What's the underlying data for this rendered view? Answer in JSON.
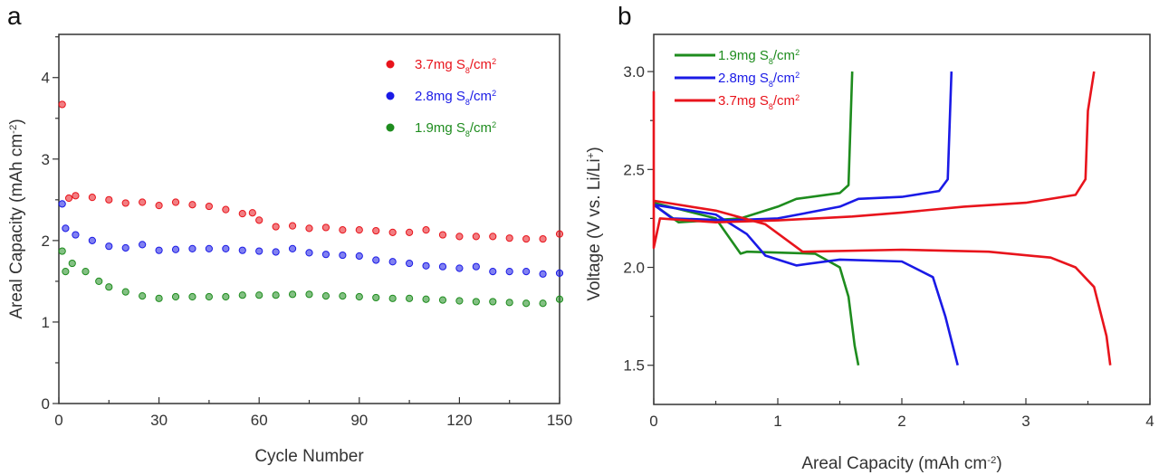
{
  "chart_data": [
    {
      "panel_label": "a",
      "type": "scatter",
      "xlabel": "Cycle Number",
      "ylabel": {
        "text": "Areal Capacity (mAh cm",
        "sup": "-2",
        "tail": ")"
      },
      "xlim": [
        0,
        150
      ],
      "ylim": [
        0,
        4.53
      ],
      "xticks": [
        0,
        30,
        60,
        90,
        120,
        150
      ],
      "yticks": [
        0,
        1,
        2,
        3,
        4
      ],
      "grid": false,
      "legend_position": "top-right",
      "series": [
        {
          "name": {
            "prefix": "3.7mg S",
            "sub": "8",
            "mid": "/cm",
            "sup": "2"
          },
          "color": "#e8141c",
          "x": [
            1,
            3,
            5,
            10,
            15,
            20,
            25,
            30,
            35,
            40,
            45,
            50,
            55,
            58,
            60,
            65,
            70,
            75,
            80,
            85,
            90,
            95,
            100,
            105,
            110,
            115,
            120,
            125,
            130,
            135,
            140,
            145,
            150
          ],
          "y": [
            3.67,
            2.52,
            2.55,
            2.53,
            2.5,
            2.46,
            2.47,
            2.43,
            2.47,
            2.44,
            2.42,
            2.38,
            2.33,
            2.34,
            2.25,
            2.17,
            2.18,
            2.15,
            2.16,
            2.13,
            2.13,
            2.12,
            2.1,
            2.1,
            2.13,
            2.07,
            2.05,
            2.05,
            2.05,
            2.03,
            2.02,
            2.02,
            2.08
          ]
        },
        {
          "name": {
            "prefix": "2.8mg S",
            "sub": "8",
            "mid": "/cm",
            "sup": "2"
          },
          "color": "#1a1ae6",
          "x": [
            1,
            2,
            5,
            10,
            15,
            20,
            25,
            30,
            35,
            40,
            45,
            50,
            55,
            60,
            65,
            70,
            75,
            80,
            85,
            90,
            95,
            100,
            105,
            110,
            115,
            120,
            125,
            130,
            135,
            140,
            145,
            150
          ],
          "y": [
            2.45,
            2.15,
            2.07,
            2.0,
            1.93,
            1.91,
            1.95,
            1.88,
            1.89,
            1.9,
            1.9,
            1.9,
            1.88,
            1.87,
            1.86,
            1.9,
            1.85,
            1.83,
            1.82,
            1.81,
            1.76,
            1.74,
            1.72,
            1.69,
            1.68,
            1.66,
            1.68,
            1.62,
            1.62,
            1.62,
            1.59,
            1.6
          ]
        },
        {
          "name": {
            "prefix": "1.9mg S",
            "sub": "8",
            "mid": "/cm",
            "sup": "2"
          },
          "color": "#1e8c1e",
          "x": [
            1,
            2,
            4,
            8,
            12,
            15,
            20,
            25,
            30,
            35,
            40,
            45,
            50,
            55,
            60,
            65,
            70,
            75,
            80,
            85,
            90,
            95,
            100,
            105,
            110,
            115,
            120,
            125,
            130,
            135,
            140,
            145,
            150
          ],
          "y": [
            1.87,
            1.62,
            1.72,
            1.62,
            1.5,
            1.43,
            1.37,
            1.32,
            1.29,
            1.31,
            1.31,
            1.31,
            1.31,
            1.33,
            1.33,
            1.33,
            1.34,
            1.34,
            1.32,
            1.32,
            1.31,
            1.3,
            1.29,
            1.29,
            1.28,
            1.27,
            1.26,
            1.25,
            1.25,
            1.24,
            1.23,
            1.23,
            1.28
          ]
        }
      ]
    },
    {
      "panel_label": "b",
      "type": "line",
      "xlabel": {
        "text": "Areal Capacity (mAh cm",
        "sup": "-2",
        "tail": ")"
      },
      "ylabel": {
        "text": "Voltage (V vs. Li/Li",
        "sup": "+",
        "tail": ")"
      },
      "xlim": [
        0,
        4
      ],
      "ylim": [
        1.3,
        3.19
      ],
      "xticks": [
        0,
        1,
        2,
        3,
        4
      ],
      "yticks": [
        1.5,
        2.0,
        2.5,
        3.0
      ],
      "grid": false,
      "legend_position": "top-left",
      "series": [
        {
          "name": {
            "prefix": "1.9mg S",
            "sub": "8",
            "mid": "/cm",
            "sup": "2"
          },
          "color": "#1e8c1e",
          "charge": [
            [
              0,
              2.32
            ],
            [
              0.2,
              2.23
            ],
            [
              0.7,
              2.25
            ],
            [
              1.0,
              2.31
            ],
            [
              1.15,
              2.35
            ],
            [
              1.5,
              2.38
            ],
            [
              1.57,
              2.42
            ],
            [
              1.6,
              3.0
            ]
          ],
          "discharge": [
            [
              0,
              2.33
            ],
            [
              0.5,
              2.25
            ],
            [
              0.7,
              2.07
            ],
            [
              0.75,
              2.08
            ],
            [
              1.3,
              2.07
            ],
            [
              1.5,
              2.0
            ],
            [
              1.57,
              1.85
            ],
            [
              1.62,
              1.6
            ],
            [
              1.65,
              1.5
            ]
          ]
        },
        {
          "name": {
            "prefix": "2.8mg S",
            "sub": "8",
            "mid": "/cm",
            "sup": "2"
          },
          "color": "#1a1ae6",
          "charge": [
            [
              0,
              2.32
            ],
            [
              0.15,
              2.25
            ],
            [
              0.6,
              2.24
            ],
            [
              1.0,
              2.25
            ],
            [
              1.5,
              2.31
            ],
            [
              1.65,
              2.35
            ],
            [
              2.0,
              2.36
            ],
            [
              2.3,
              2.39
            ],
            [
              2.37,
              2.45
            ],
            [
              2.4,
              3.0
            ]
          ],
          "discharge": [
            [
              0,
              2.32
            ],
            [
              0.5,
              2.27
            ],
            [
              0.75,
              2.17
            ],
            [
              0.9,
              2.06
            ],
            [
              1.15,
              2.01
            ],
            [
              1.5,
              2.04
            ],
            [
              2.0,
              2.03
            ],
            [
              2.25,
              1.95
            ],
            [
              2.35,
              1.75
            ],
            [
              2.45,
              1.5
            ]
          ]
        },
        {
          "name": {
            "prefix": "3.7mg S",
            "sub": "8",
            "mid": "/cm",
            "sup": "2"
          },
          "color": "#e8141c",
          "charge": [
            [
              0,
              2.9
            ],
            [
              0,
              2.1
            ],
            [
              0.05,
              2.25
            ],
            [
              0.5,
              2.23
            ],
            [
              1.0,
              2.24
            ],
            [
              1.6,
              2.26
            ],
            [
              2.0,
              2.28
            ],
            [
              2.5,
              2.31
            ],
            [
              3.0,
              2.33
            ],
            [
              3.4,
              2.37
            ],
            [
              3.48,
              2.45
            ],
            [
              3.5,
              2.8
            ],
            [
              3.55,
              3.0
            ]
          ],
          "discharge": [
            [
              0,
              2.34
            ],
            [
              0.5,
              2.29
            ],
            [
              0.9,
              2.22
            ],
            [
              1.2,
              2.08
            ],
            [
              2.0,
              2.09
            ],
            [
              2.7,
              2.08
            ],
            [
              3.2,
              2.05
            ],
            [
              3.4,
              2.0
            ],
            [
              3.55,
              1.9
            ],
            [
              3.65,
              1.65
            ],
            [
              3.68,
              1.5
            ]
          ]
        }
      ]
    }
  ]
}
